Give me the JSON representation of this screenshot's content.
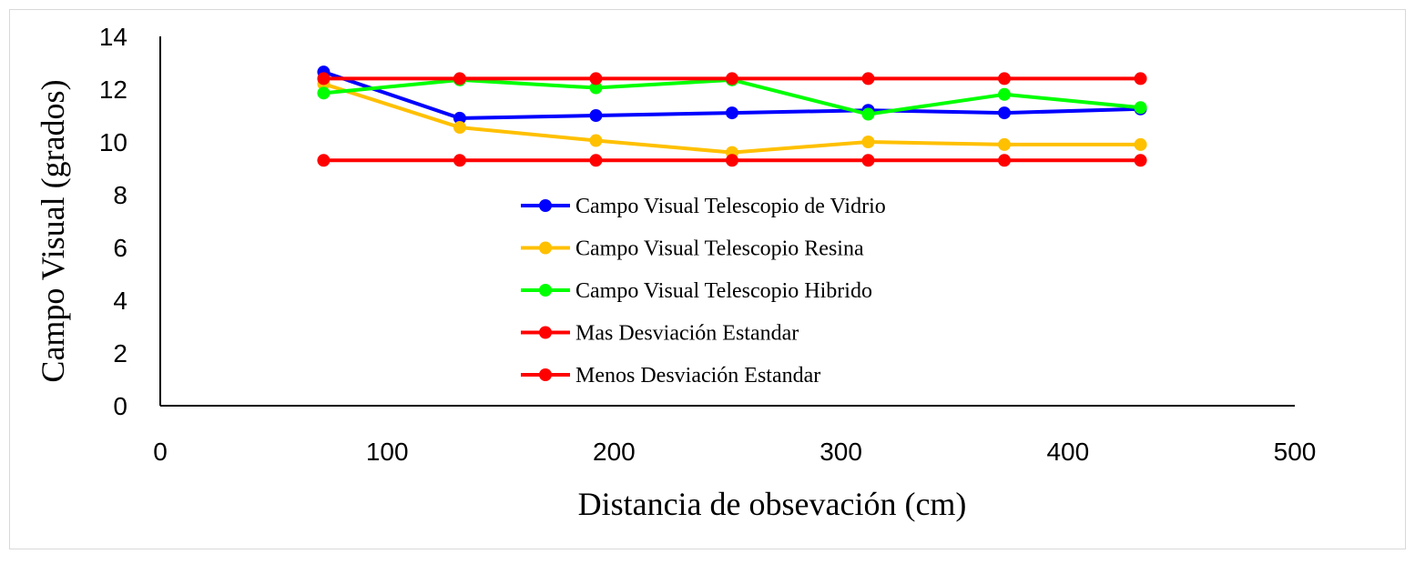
{
  "chart_data": {
    "type": "line",
    "title": "",
    "xlabel": "Distancia de obsevación (cm)",
    "ylabel": "Campo Visual (grados)",
    "xlim": [
      0,
      500
    ],
    "ylim": [
      0,
      14
    ],
    "xticks": [
      "0",
      "100",
      "200",
      "300",
      "400",
      "500"
    ],
    "yticks": [
      "0",
      "2",
      "4",
      "6",
      "8",
      "10",
      "12",
      "14"
    ],
    "grid": false,
    "legend_position": "center",
    "x": [
      72,
      132,
      192,
      252,
      312,
      372,
      432
    ],
    "series": [
      {
        "name": "Campo Visual Telescopio de Vidrio",
        "color": "#0000ff",
        "values": [
          12.65,
          10.9,
          11.0,
          11.1,
          11.2,
          11.1,
          11.25
        ]
      },
      {
        "name": "Campo Visual Telescopio Resina",
        "color": "#ffc000",
        "values": [
          12.2,
          10.55,
          10.05,
          9.6,
          10.0,
          9.9,
          9.9
        ]
      },
      {
        "name": "Campo Visual Telescopio Hibrido",
        "color": "#00ff00",
        "values": [
          11.85,
          12.35,
          12.05,
          12.35,
          11.05,
          11.8,
          11.3
        ]
      },
      {
        "name": "Mas Desviación Estandar",
        "color": "#ff0000",
        "values": [
          12.4,
          12.4,
          12.4,
          12.4,
          12.4,
          12.4,
          12.4
        ]
      },
      {
        "name": "Menos Desviación Estandar",
        "color": "#ff0000",
        "values": [
          9.3,
          9.3,
          9.3,
          9.3,
          9.3,
          9.3,
          9.3
        ]
      }
    ]
  }
}
